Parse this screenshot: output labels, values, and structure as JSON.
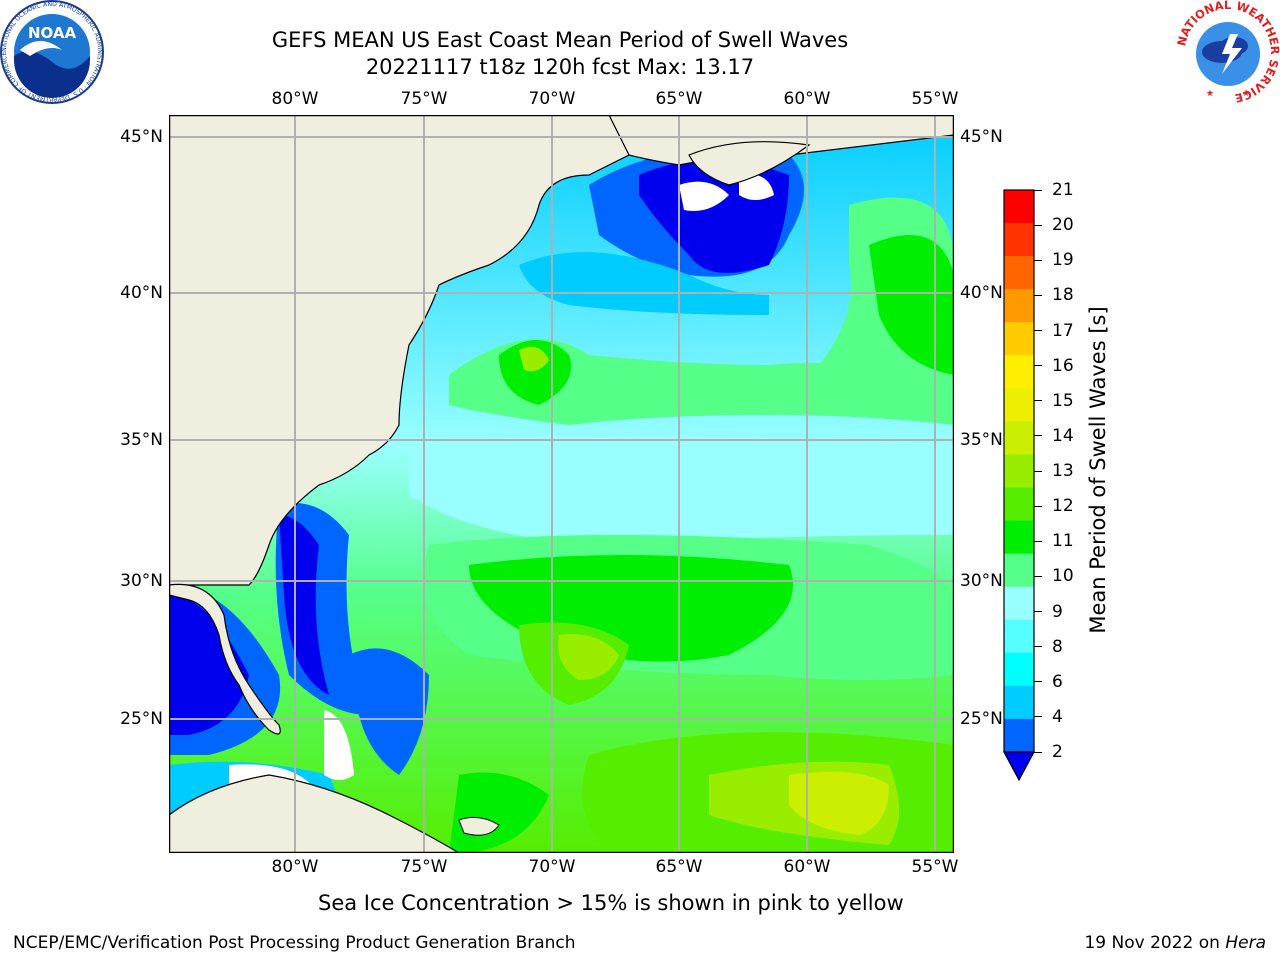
{
  "title": {
    "line1": "GEFS MEAN US East Coast Mean Period of Swell Waves",
    "line2": "20221117 t18z 120h fcst   Max: 13.17"
  },
  "map": {
    "lon_ticks": [
      "80°W",
      "75°W",
      "70°W",
      "65°W",
      "60°W",
      "55°W"
    ],
    "lat_ticks": [
      "45°N",
      "40°N",
      "35°N",
      "30°N",
      "25°N"
    ],
    "colors": {
      "land": "#efeedf",
      "grid": "#b0b0b0",
      "coast": "#000000"
    }
  },
  "colorbar": {
    "label": "Mean Period of Swell Waves [s]",
    "ticks": [
      "21",
      "20",
      "19",
      "18",
      "17",
      "16",
      "15",
      "14",
      "13",
      "12",
      "11",
      "10",
      "9",
      "8",
      "6",
      "4",
      "2"
    ],
    "colors": [
      "#0000ee",
      "#0066ff",
      "#00ccff",
      "#00ffff",
      "#55ffff",
      "#99ffff",
      "#55ff88",
      "#00ee00",
      "#55ee00",
      "#99ee00",
      "#ccee00",
      "#eeee00",
      "#ffee00",
      "#ffcc00",
      "#ff9900",
      "#ff6600",
      "#ff3300",
      "#ff0000"
    ]
  },
  "caption": "Sea Ice Concentration > 15% is shown in pink to yellow",
  "footer": {
    "left": "NCEP/EMC/Verification Post Processing Product Generation Branch",
    "right_date": "19 Nov 2022 on",
    "right_host": "Hera"
  },
  "logos": {
    "left": "NOAA",
    "left_ring": "NATIONAL OCEANIC AND ATMOSPHERIC ADMINISTRATION · U.S. DEPARTMENT OF COMMERCE",
    "right_ring": "NATIONAL WEATHER SERVICE"
  }
}
